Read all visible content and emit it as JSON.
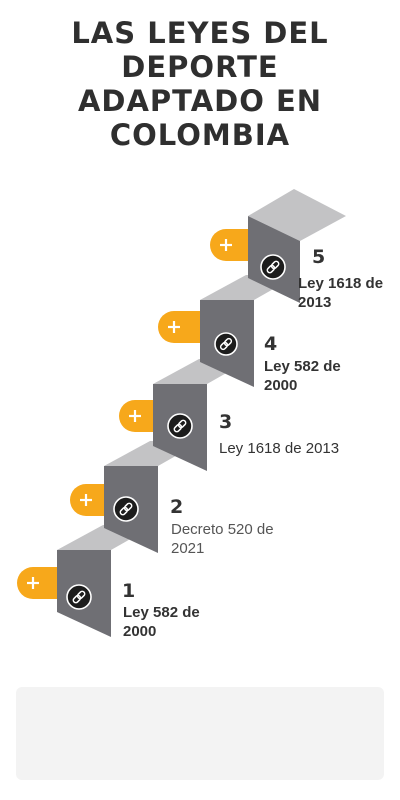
{
  "title": "LAS LEYES  DEL DEPORTE ADAPTADO EN COLOMBIA",
  "colors": {
    "tread": "#c3c3c5",
    "riser": "#6f6f74",
    "plus_badge": "#f7a81b",
    "link_circle": "#1c1c1c"
  },
  "icons": {
    "plus": "plus-icon",
    "link": "link-icon"
  },
  "steps": [
    {
      "number": "1",
      "label": "Ley 582 de 2000"
    },
    {
      "number": "2",
      "label": "Decreto 520 de 2021"
    },
    {
      "number": "3",
      "label": "Ley 1618 de 2013"
    },
    {
      "number": "4",
      "label": "Ley 582 de 2000"
    },
    {
      "number": "5",
      "label": "Ley 1618 de 2013"
    }
  ]
}
